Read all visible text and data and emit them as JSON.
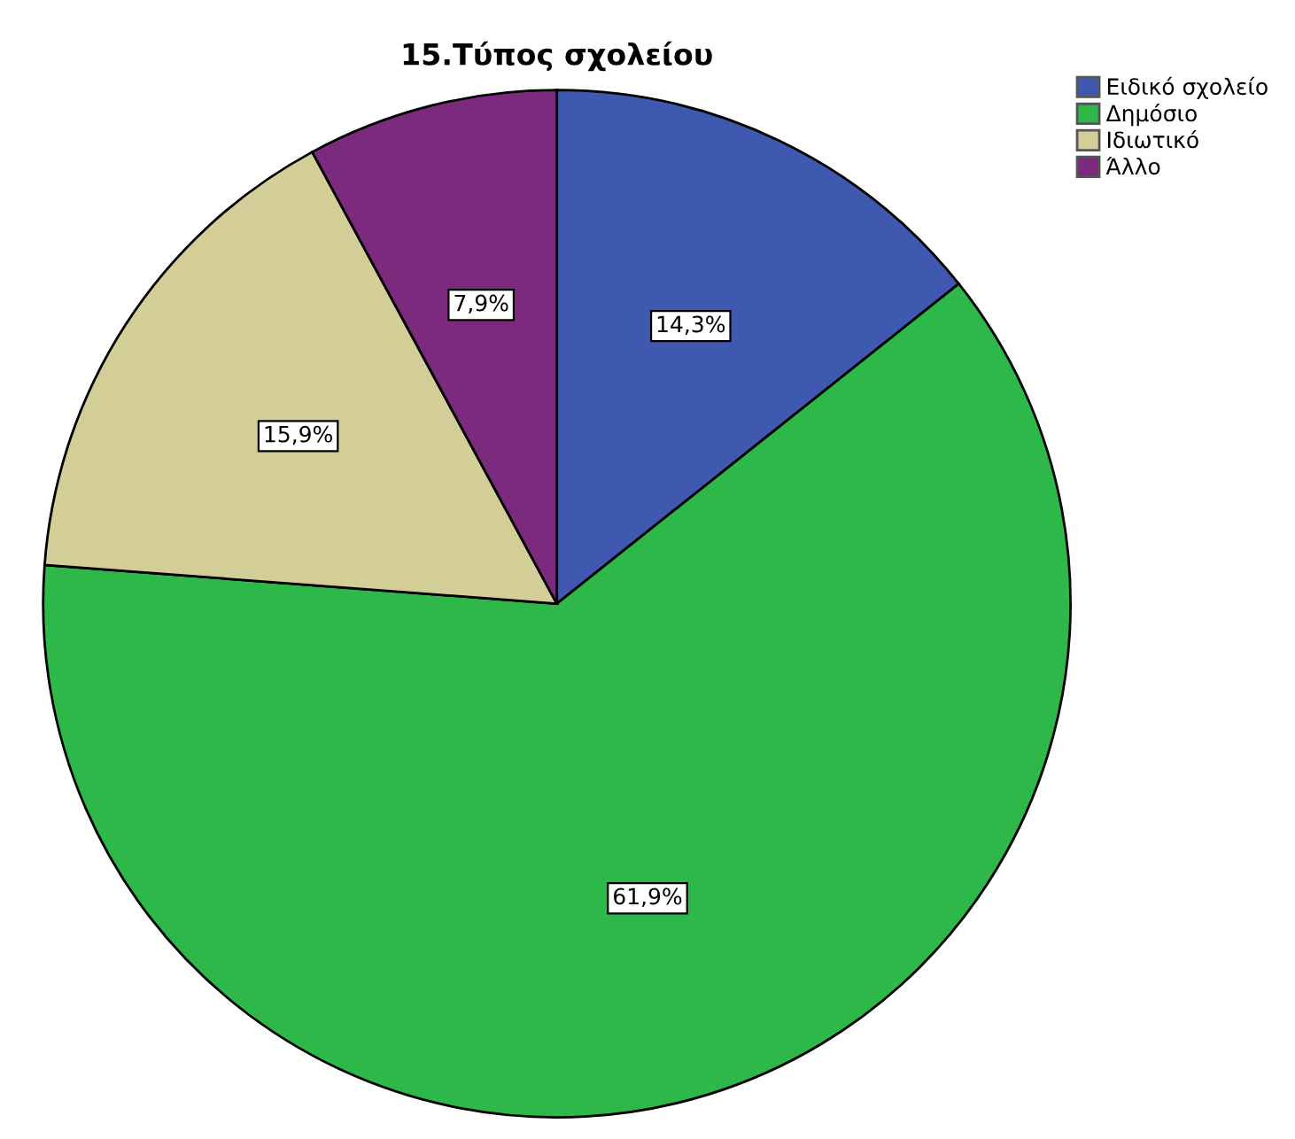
{
  "chart_data": {
    "type": "pie",
    "title": "15.Τύπος σχολείου",
    "categories": [
      "Ειδικό σχολείο",
      "Δημόσιο",
      "Ιδιωτικό",
      "Άλλο"
    ],
    "values": [
      14.3,
      61.9,
      15.9,
      7.9
    ],
    "colors": [
      "#3f58b0",
      "#2fb84a",
      "#d3ce98",
      "#7b2a7e"
    ],
    "value_labels": [
      "14,3%",
      "61,9%",
      "15,9%",
      "7,9%"
    ],
    "legend": "top right"
  }
}
